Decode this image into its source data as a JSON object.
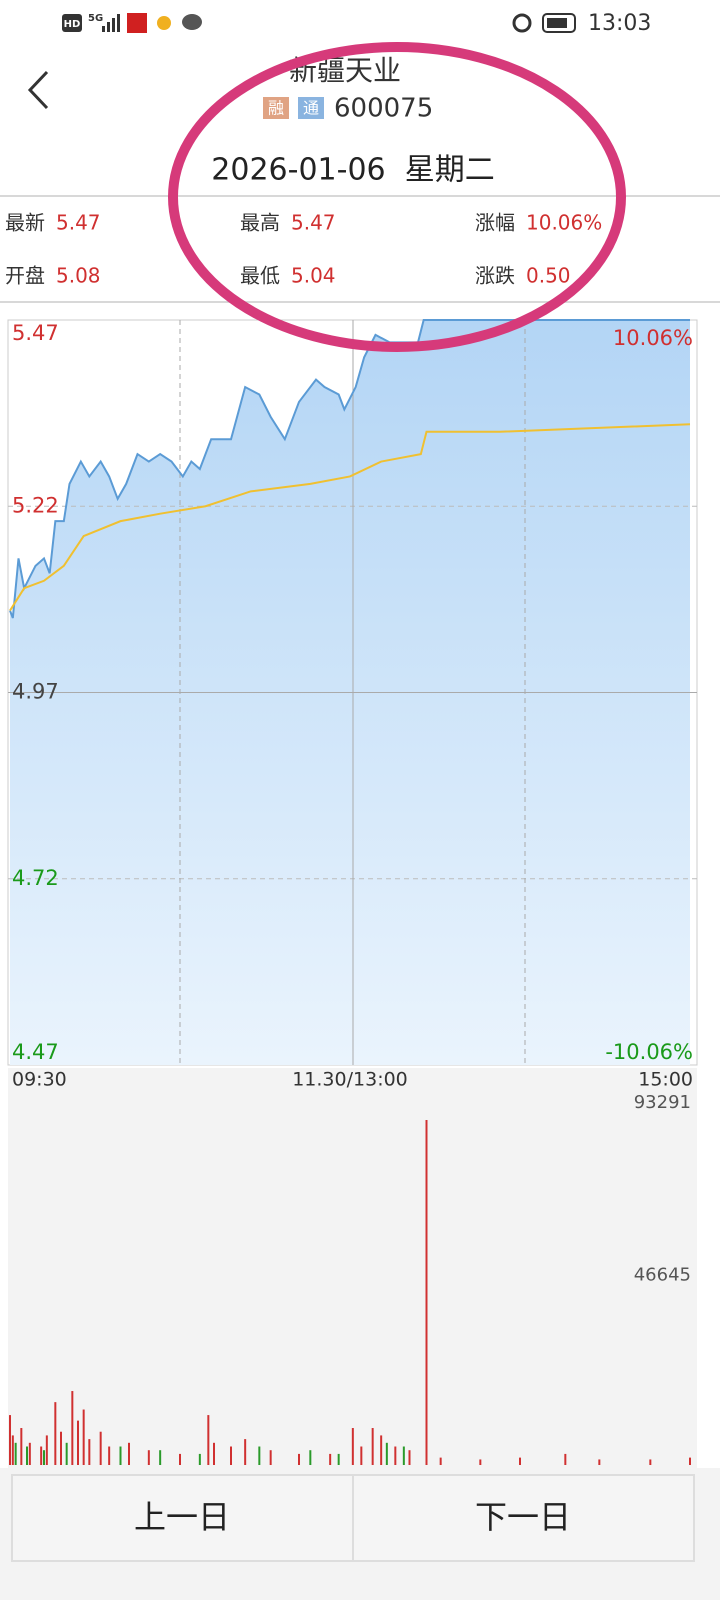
{
  "status_bar": {
    "hd": "HD",
    "network": "5G",
    "time": "13:03"
  },
  "header": {
    "title": "新疆天业",
    "badges": [
      "融",
      "通"
    ],
    "code": "600075",
    "date": "2026-01-06  星期二"
  },
  "stats": [
    [
      {
        "label": "最新",
        "value": "5.47"
      },
      {
        "label": "最高",
        "value": "5.47"
      },
      {
        "label": "涨幅",
        "value": "10.06%"
      }
    ],
    [
      {
        "label": "开盘",
        "value": "5.08"
      },
      {
        "label": "最低",
        "value": "5.04"
      },
      {
        "label": "涨跌",
        "value": "0.50"
      }
    ]
  ],
  "chart": {
    "type": "line",
    "xlim": [
      0,
      240
    ],
    "xticks": [
      {
        "value": 0,
        "label": "09:30"
      },
      {
        "value": 120,
        "label": "11.30/13:00"
      },
      {
        "value": 240,
        "label": "15:00"
      }
    ],
    "ylim": [
      4.47,
      5.47
    ],
    "yticks": [
      5.47,
      5.22,
      4.97,
      4.72,
      4.47
    ],
    "pct_labels": [
      "10.06%",
      "-10.06%"
    ],
    "series": [
      {
        "color": "#5b9bd5",
        "x": [
          0,
          1,
          3,
          5,
          9,
          12,
          14,
          16,
          19,
          21,
          25,
          28,
          32,
          35,
          38,
          41,
          45,
          49,
          53,
          57,
          61,
          64,
          67,
          71,
          78,
          83,
          88,
          92,
          97,
          102,
          108,
          111,
          116,
          118,
          122,
          125,
          129,
          134,
          139,
          144,
          146,
          240
        ],
        "values": [
          5.08,
          5.07,
          5.15,
          5.11,
          5.14,
          5.15,
          5.13,
          5.2,
          5.2,
          5.25,
          5.28,
          5.26,
          5.28,
          5.26,
          5.23,
          5.25,
          5.29,
          5.28,
          5.29,
          5.28,
          5.26,
          5.28,
          5.27,
          5.31,
          5.31,
          5.38,
          5.37,
          5.34,
          5.31,
          5.36,
          5.39,
          5.38,
          5.37,
          5.35,
          5.38,
          5.42,
          5.45,
          5.44,
          5.44,
          5.44,
          5.47,
          5.47
        ]
      },
      {
        "color": "#f0c030",
        "x": [
          0,
          5,
          12,
          19,
          26,
          39,
          53,
          69,
          85,
          106,
          120,
          131,
          145,
          147,
          173,
          240
        ],
        "values": [
          5.08,
          5.11,
          5.12,
          5.14,
          5.18,
          5.2,
          5.21,
          5.22,
          5.24,
          5.25,
          5.26,
          5.28,
          5.29,
          5.32,
          5.32,
          5.33
        ]
      }
    ]
  },
  "volume_chart": {
    "type": "bar",
    "xlim": [
      0,
      240
    ],
    "ylim": [
      0,
      93291
    ],
    "yticks": [
      93291,
      46645
    ],
    "series": [
      {
        "color": "#d03030",
        "x": [
          0,
          1,
          4,
          7,
          11,
          13,
          16,
          18,
          22,
          24,
          26,
          28,
          32,
          35,
          42,
          49,
          60,
          70,
          72,
          78,
          83,
          92,
          102,
          113,
          121,
          124,
          128,
          131,
          136,
          141,
          147,
          152,
          166,
          180,
          196,
          208,
          226,
          240
        ],
        "values": [
          13500,
          8000,
          10000,
          6000,
          5000,
          8000,
          17000,
          9000,
          20000,
          12000,
          15000,
          7000,
          9000,
          5000,
          6000,
          4000,
          3000,
          13500,
          6000,
          5000,
          7000,
          4000,
          3000,
          3000,
          10000,
          5000,
          10000,
          8000,
          5000,
          4000,
          93291,
          2000,
          1500,
          2000,
          3000,
          1500,
          1500,
          2000
        ]
      },
      {
        "color": "#2a9a2a",
        "x": [
          2,
          6,
          12,
          20,
          39,
          53,
          67,
          88,
          106,
          116,
          133,
          139
        ],
        "values": [
          6000,
          5000,
          4000,
          6000,
          5000,
          4000,
          3000,
          5000,
          4000,
          3000,
          6000,
          5000
        ]
      }
    ]
  },
  "buttons": [
    "上一日",
    "下一日"
  ]
}
